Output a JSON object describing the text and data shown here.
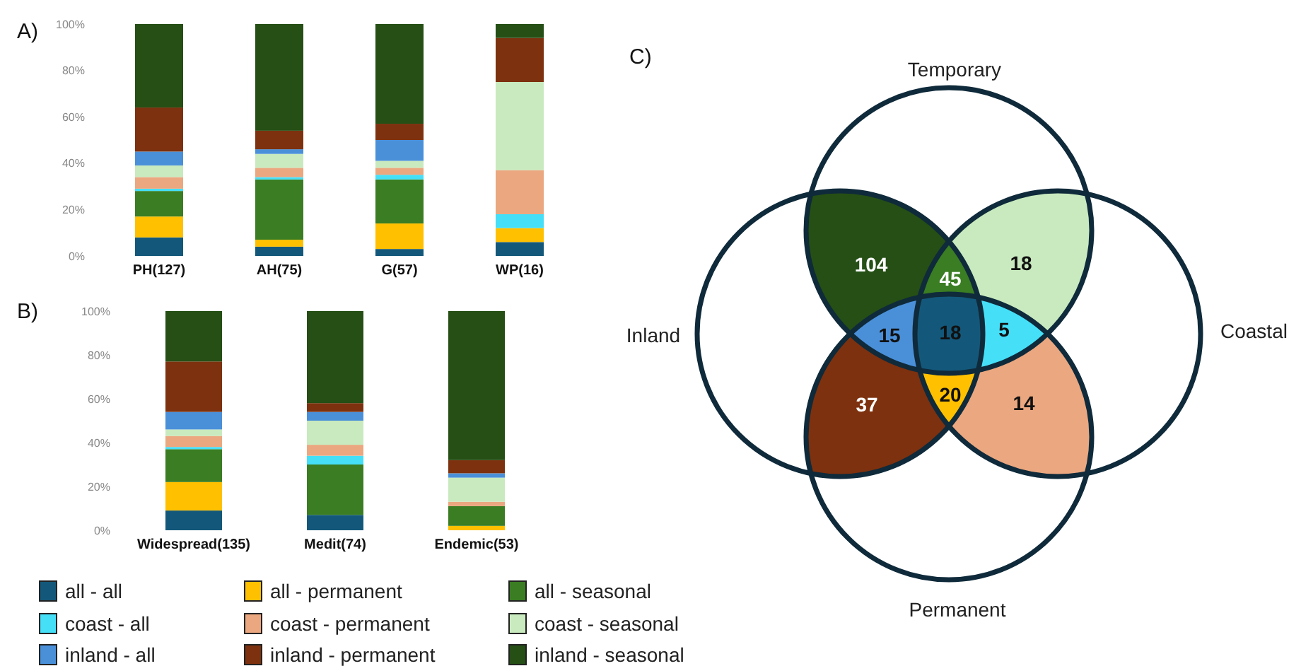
{
  "chart_data": [
    {
      "type": "bar",
      "title": "A)",
      "stacked": true,
      "categories": [
        "PH(127)",
        "AH(75)",
        "G(57)",
        "WP(16)"
      ],
      "ylim": [
        0,
        100
      ],
      "yticks": [
        {
          "value": 0,
          "label": "0%"
        },
        {
          "value": 20,
          "label": "20%"
        },
        {
          "value": 40,
          "label": "40%"
        },
        {
          "value": 60,
          "label": "60%"
        },
        {
          "value": 80,
          "label": "80%"
        },
        {
          "value": 100,
          "label": "100%"
        }
      ],
      "legend": "bottom",
      "series": [
        {
          "name": "all - all",
          "color": "#13587a",
          "values": [
            8,
            4,
            3,
            6
          ]
        },
        {
          "name": "all - permanent",
          "color": "#ffc000",
          "values": [
            9,
            3,
            11,
            6
          ]
        },
        {
          "name": "all - seasonal",
          "color": "#3a7d22",
          "values": [
            11,
            26,
            19,
            0
          ]
        },
        {
          "name": "coast - all",
          "color": "#45dff8",
          "values": [
            1,
            1,
            2,
            6
          ]
        },
        {
          "name": "coast - permanent",
          "color": "#eba77f",
          "values": [
            5,
            4,
            3,
            19
          ]
        },
        {
          "name": "coast - seasonal",
          "color": "#c9eabe",
          "values": [
            5,
            6,
            3,
            38
          ]
        },
        {
          "name": "inland - all",
          "color": "#4a90d9",
          "values": [
            6,
            2,
            9,
            0
          ]
        },
        {
          "name": "inland - permanent",
          "color": "#7d310e",
          "values": [
            19,
            8,
            7,
            19
          ]
        },
        {
          "name": "inland - seasonal",
          "color": "#254f15",
          "values": [
            36,
            46,
            43,
            6
          ]
        }
      ]
    },
    {
      "type": "bar",
      "title": "B)",
      "stacked": true,
      "categories": [
        "Widespread(135)",
        "Medit(74)",
        "Endemic(53)"
      ],
      "ylim": [
        0,
        100
      ],
      "yticks": [
        {
          "value": 0,
          "label": "0%"
        },
        {
          "value": 20,
          "label": "20%"
        },
        {
          "value": 40,
          "label": "40%"
        },
        {
          "value": 60,
          "label": "60%"
        },
        {
          "value": 80,
          "label": "80%"
        },
        {
          "value": 100,
          "label": "100%"
        }
      ],
      "series": [
        {
          "color": "#13587a",
          "values": [
            9,
            7,
            0
          ]
        },
        {
          "color": "#ffc000",
          "values": [
            13,
            0,
            2
          ]
        },
        {
          "color": "#3a7d22",
          "values": [
            15,
            23,
            9
          ]
        },
        {
          "color": "#45dff8",
          "values": [
            1,
            4,
            0
          ]
        },
        {
          "color": "#eba77f",
          "values": [
            5,
            5,
            2
          ]
        },
        {
          "color": "#c9eabe",
          "values": [
            3,
            11,
            11
          ]
        },
        {
          "color": "#4a90d9",
          "values": [
            8,
            4,
            2
          ]
        },
        {
          "color": "#7d310e",
          "values": [
            23,
            4,
            6
          ]
        },
        {
          "color": "#254f15",
          "values": [
            23,
            42,
            68
          ]
        }
      ]
    },
    {
      "type": "other",
      "title": "C)",
      "annotations": [
        "Temporary",
        "Inland",
        "Coastal",
        "Permanent",
        "104",
        "45",
        "18",
        "15",
        "18",
        "5",
        "37",
        "20",
        "14"
      ],
      "colors": [
        "#254f15",
        "#3a7d22",
        "#c9eabe",
        "#4a90d9",
        "#13587a",
        "#45dff8",
        "#7d310e",
        "#ffc000",
        "#eba77f"
      ]
    }
  ]
}
